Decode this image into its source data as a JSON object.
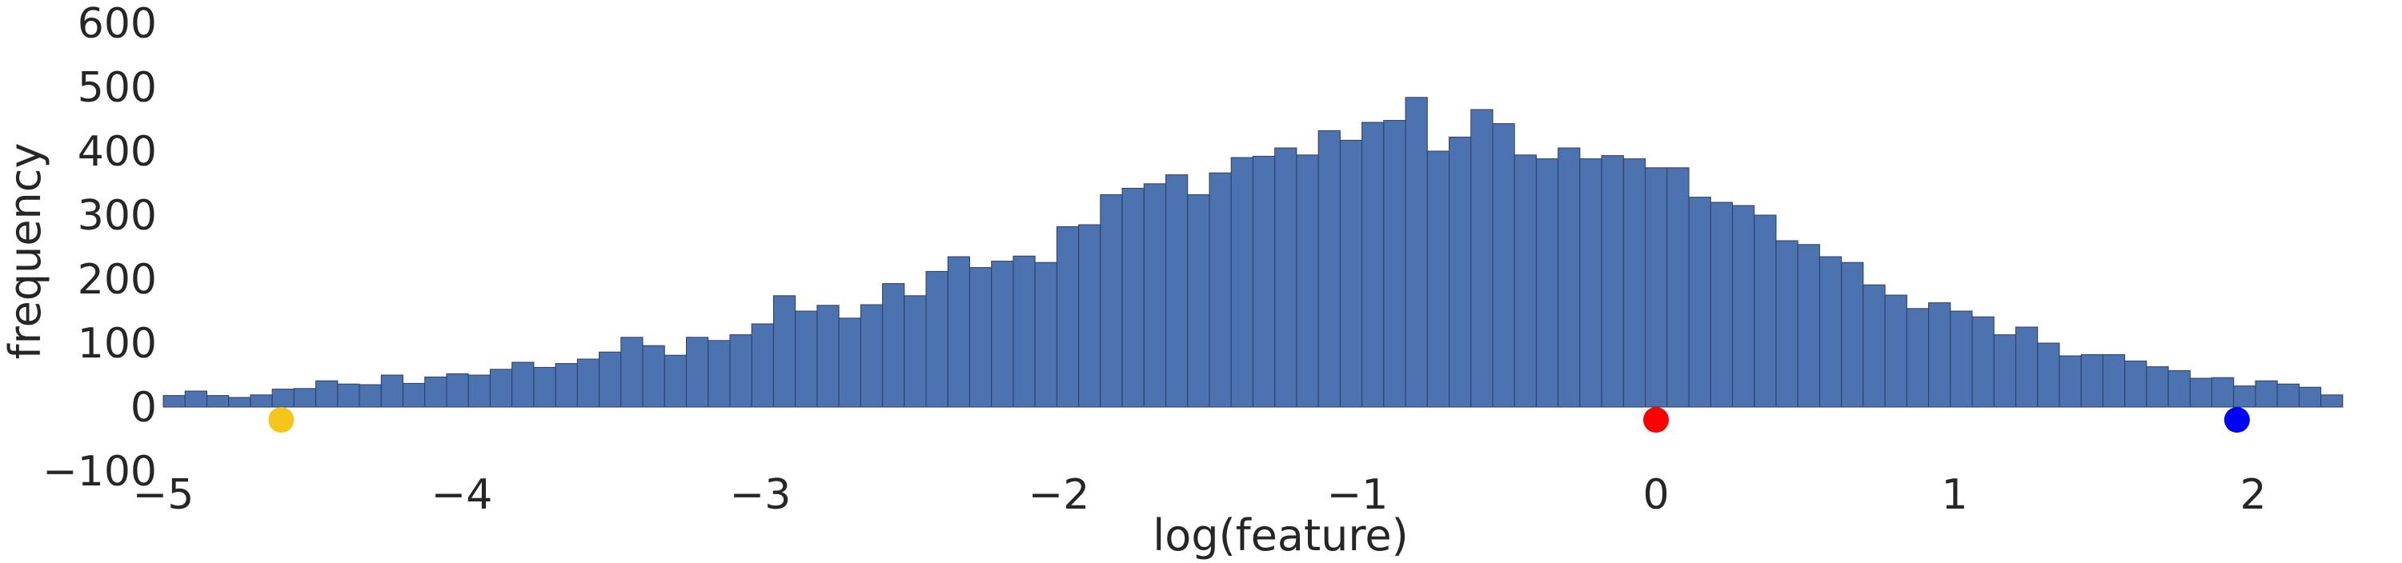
{
  "chart_data": {
    "type": "bar",
    "subtype": "histogram",
    "title": "",
    "xlabel": "log(feature)",
    "ylabel": "frequency",
    "xlim": [
      -5,
      2.3
    ],
    "ylim": [
      -100,
      600
    ],
    "bin_range": [
      -5,
      2.3
    ],
    "xticks": [
      "−5",
      "−4",
      "−3",
      "−2",
      "−1",
      "0",
      "1",
      "2"
    ],
    "xtick_values": [
      -5,
      -4,
      -3,
      -2,
      -1,
      0,
      1,
      2
    ],
    "yticks": [
      "−100",
      "0",
      "100",
      "200",
      "300",
      "400",
      "500",
      "600"
    ],
    "ytick_values": [
      -100,
      0,
      100,
      200,
      300,
      400,
      500,
      600
    ],
    "grid": false,
    "values": [
      18,
      25,
      18,
      15,
      19,
      28,
      29,
      41,
      36,
      35,
      50,
      37,
      47,
      52,
      50,
      59,
      70,
      62,
      68,
      75,
      86,
      109,
      96,
      81,
      109,
      104,
      113,
      130,
      174,
      150,
      159,
      139,
      160,
      193,
      174,
      212,
      235,
      218,
      228,
      236,
      226,
      282,
      285,
      332,
      342,
      349,
      363,
      332,
      366,
      390,
      392,
      405,
      394,
      432,
      417,
      445,
      448,
      484,
      400,
      422,
      465,
      443,
      394,
      388,
      405,
      388,
      393,
      388,
      374,
      374,
      328,
      320,
      315,
      300,
      260,
      254,
      235,
      226,
      191,
      175,
      154,
      163,
      150,
      141,
      113,
      125,
      100,
      80,
      82,
      82,
      72,
      63,
      57,
      45,
      46,
      33,
      41,
      36,
      31,
      19
    ],
    "bar_color": "#4c72b0",
    "bar_edge_color": "#2b3f63",
    "markers": [
      {
        "x": -4.605,
        "y": -20,
        "color": "#f5c518"
      },
      {
        "x": 0,
        "y": -20,
        "color": "#ff0000"
      },
      {
        "x": 1.946,
        "y": -20,
        "color": "#0000ff"
      }
    ]
  }
}
